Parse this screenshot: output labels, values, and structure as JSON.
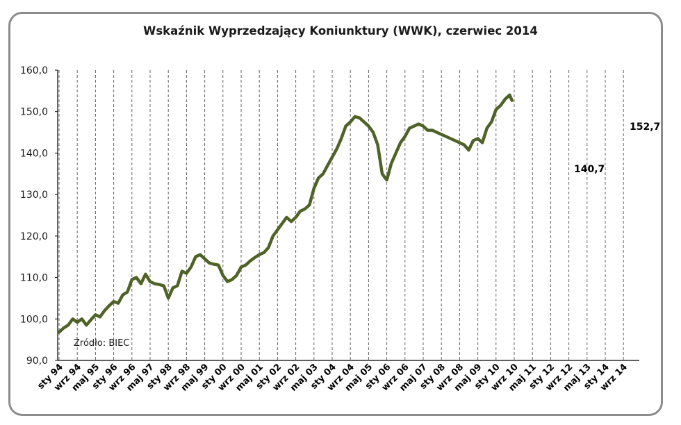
{
  "chart_data": {
    "type": "line",
    "title": "Wskaźnik Wyprzedzający Koniunktury (WWK), czerwiec 2014",
    "source": "Źródło: BIEC",
    "ylim": [
      90,
      160
    ],
    "y_ticks": [
      "90,0",
      "100,0",
      "110,0",
      "120,0",
      "130,0",
      "140,0",
      "150,0",
      "160,0"
    ],
    "x_ticks": [
      "sty 94",
      "wrz 94",
      "maj 95",
      "sty 96",
      "wrz 96",
      "maj 97",
      "sty 98",
      "wrz 98",
      "maj 99",
      "sty 00",
      "wrz 00",
      "maj 01",
      "sty 02",
      "wrz 02",
      "maj 03",
      "sty 04",
      "wrz 04",
      "maj 05",
      "sty 06",
      "wrz 06",
      "maj 07",
      "sty 08",
      "wrz 08",
      "maj 09",
      "sty 10",
      "wrz 10",
      "maj 11",
      "sty 12",
      "wrz 12",
      "maj 13",
      "sty 14",
      "wrz 14"
    ],
    "grid": "vertical dashed",
    "line_color": "#4f6228",
    "series": [
      {
        "values": [
          [
            0,
            96.8
          ],
          [
            2,
            97.8
          ],
          [
            4,
            98.5
          ],
          [
            6,
            100.0
          ],
          [
            8,
            99.2
          ],
          [
            10,
            100.0
          ],
          [
            12,
            98.5
          ],
          [
            14,
            99.8
          ],
          [
            16,
            101.0
          ],
          [
            18,
            100.5
          ],
          [
            20,
            102.0
          ],
          [
            22,
            103.2
          ],
          [
            24,
            104.2
          ],
          [
            26,
            103.8
          ],
          [
            28,
            105.8
          ],
          [
            30,
            106.5
          ],
          [
            32,
            109.5
          ],
          [
            34,
            110.0
          ],
          [
            36,
            108.5
          ],
          [
            38,
            110.8
          ],
          [
            40,
            109.0
          ],
          [
            42,
            108.5
          ],
          [
            44,
            108.3
          ],
          [
            46,
            108.0
          ],
          [
            48,
            105.0
          ],
          [
            50,
            107.5
          ],
          [
            52,
            108.0
          ],
          [
            54,
            111.5
          ],
          [
            56,
            111.0
          ],
          [
            58,
            112.5
          ],
          [
            60,
            115.0
          ],
          [
            62,
            115.5
          ],
          [
            64,
            114.5
          ],
          [
            66,
            113.5
          ],
          [
            68,
            113.2
          ],
          [
            70,
            113.0
          ],
          [
            72,
            110.5
          ],
          [
            74,
            109.0
          ],
          [
            76,
            109.5
          ],
          [
            78,
            110.5
          ],
          [
            80,
            112.5
          ],
          [
            82,
            113.0
          ],
          [
            84,
            114.0
          ],
          [
            86,
            114.8
          ],
          [
            88,
            115.5
          ],
          [
            90,
            116.0
          ],
          [
            92,
            117.2
          ],
          [
            94,
            120.0
          ],
          [
            96,
            121.5
          ],
          [
            98,
            123.0
          ],
          [
            100,
            124.5
          ],
          [
            102,
            123.5
          ],
          [
            104,
            124.5
          ],
          [
            106,
            126.0
          ],
          [
            108,
            126.5
          ],
          [
            110,
            127.5
          ],
          [
            112,
            131.5
          ],
          [
            114,
            134.0
          ],
          [
            116,
            135.0
          ],
          [
            118,
            137.0
          ],
          [
            120,
            139.0
          ],
          [
            122,
            141.0
          ],
          [
            124,
            143.5
          ],
          [
            126,
            146.5
          ],
          [
            128,
            147.5
          ],
          [
            130,
            148.8
          ],
          [
            132,
            148.5
          ],
          [
            134,
            147.5
          ],
          [
            136,
            146.5
          ],
          [
            138,
            145.0
          ],
          [
            140,
            142.0
          ],
          [
            142,
            135.0
          ],
          [
            144,
            133.5
          ],
          [
            146,
            137.5
          ],
          [
            148,
            140.0
          ],
          [
            150,
            142.5
          ],
          [
            152,
            144.0
          ],
          [
            154,
            146.0
          ],
          [
            156,
            146.5
          ],
          [
            158,
            147.0
          ],
          [
            160,
            146.5
          ],
          [
            162,
            145.5
          ],
          [
            164,
            145.5
          ],
          [
            166,
            145.0
          ],
          [
            168,
            144.5
          ],
          [
            170,
            144.0
          ],
          [
            172,
            143.5
          ],
          [
            174,
            143.0
          ],
          [
            176,
            142.5
          ],
          [
            178,
            142.0
          ],
          [
            180,
            140.7
          ],
          [
            182,
            143.0
          ],
          [
            184,
            143.5
          ],
          [
            186,
            142.5
          ],
          [
            188,
            146.0
          ],
          [
            190,
            147.5
          ],
          [
            192,
            150.5
          ],
          [
            194,
            151.5
          ],
          [
            196,
            153.0
          ],
          [
            198,
            154.0
          ],
          [
            199,
            152.7
          ]
        ]
      }
    ],
    "annotations": [
      "152,7",
      "140,7"
    ]
  }
}
